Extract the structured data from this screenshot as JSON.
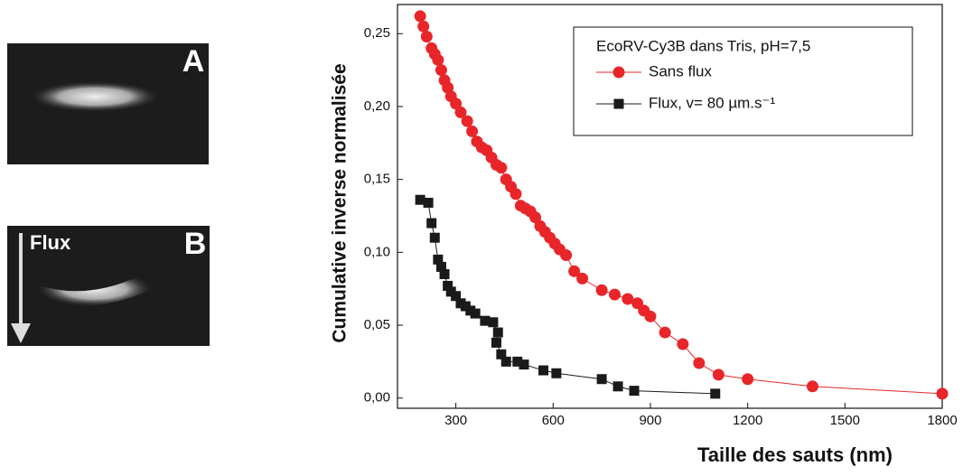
{
  "panels": [
    {
      "label": "A"
    },
    {
      "label": "B",
      "arrow_label": "Flux"
    }
  ],
  "chart_data": {
    "type": "line",
    "xlabel": "Taille des sauts (nm)",
    "ylabel": "Cumulative inverse normalisée",
    "legend_title": "EcoRV-Cy3B dans Tris, pH=7,5",
    "xlim": [
      120,
      1800
    ],
    "xticks": [
      300,
      600,
      900,
      1200,
      1500,
      1800
    ],
    "ylim": [
      -0.007,
      0.27
    ],
    "yticks": [
      {
        "value": 0,
        "label": "0,00"
      },
      {
        "value": 0.05,
        "label": "0,05"
      },
      {
        "value": 0.1,
        "label": "0,10"
      },
      {
        "value": 0.15,
        "label": "0,15"
      },
      {
        "value": 0.2,
        "label": "0,20"
      },
      {
        "value": 0.25,
        "label": "0,25"
      }
    ],
    "series": [
      {
        "name": "Sans flux",
        "color": "#e8262a",
        "marker": "circle",
        "x": [
          190,
          200,
          210,
          225,
          235,
          245,
          255,
          265,
          275,
          285,
          300,
          315,
          335,
          350,
          365,
          380,
          395,
          410,
          425,
          440,
          455,
          470,
          485,
          500,
          515,
          530,
          545,
          560,
          575,
          590,
          605,
          620,
          640,
          665,
          690,
          750,
          790,
          830,
          860,
          880,
          900,
          945,
          1000,
          1050,
          1110,
          1200,
          1400,
          1800
        ],
        "values": [
          0.262,
          0.255,
          0.248,
          0.24,
          0.236,
          0.232,
          0.225,
          0.218,
          0.213,
          0.207,
          0.202,
          0.196,
          0.19,
          0.183,
          0.176,
          0.172,
          0.17,
          0.165,
          0.16,
          0.158,
          0.15,
          0.145,
          0.14,
          0.132,
          0.13,
          0.128,
          0.124,
          0.118,
          0.114,
          0.11,
          0.106,
          0.102,
          0.098,
          0.087,
          0.082,
          0.074,
          0.071,
          0.068,
          0.065,
          0.06,
          0.056,
          0.045,
          0.037,
          0.024,
          0.016,
          0.013,
          0.008,
          0.003
        ]
      },
      {
        "name": "Flux, v= 80 µm.s⁻¹",
        "color": "#1a1a1a",
        "marker": "square",
        "x": [
          190,
          215,
          225,
          235,
          245,
          255,
          265,
          275,
          285,
          300,
          315,
          330,
          345,
          360,
          390,
          415,
          430,
          425,
          440,
          455,
          490,
          510,
          570,
          610,
          750,
          800,
          850,
          1100
        ],
        "values": [
          0.136,
          0.134,
          0.12,
          0.11,
          0.095,
          0.09,
          0.085,
          0.077,
          0.073,
          0.07,
          0.065,
          0.063,
          0.06,
          0.058,
          0.053,
          0.052,
          0.045,
          0.038,
          0.03,
          0.025,
          0.025,
          0.023,
          0.019,
          0.017,
          0.013,
          0.008,
          0.005,
          0.003
        ]
      }
    ]
  }
}
